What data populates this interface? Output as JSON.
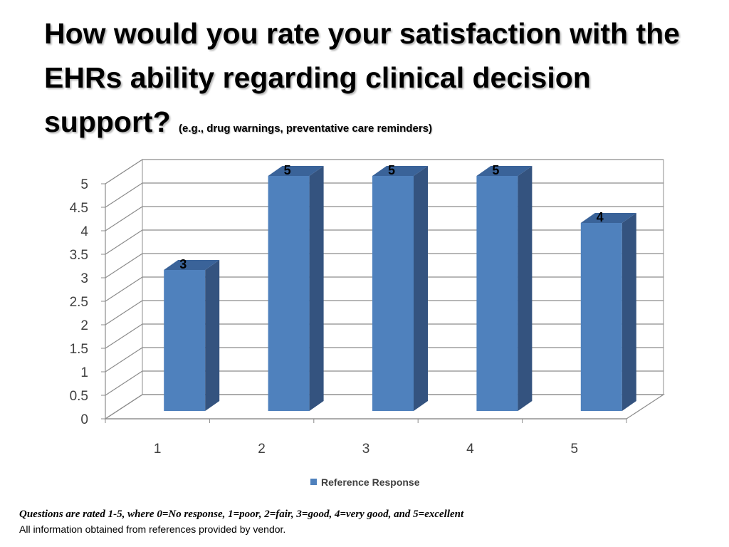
{
  "title": {
    "main": "How would you rate your satisfaction with the EHRs ability regarding clinical decision support?",
    "sub": "(e.g., drug warnings, preventative care reminders)"
  },
  "chart_data": {
    "type": "bar",
    "style": "3d-clustered-column",
    "categories": [
      "1",
      "2",
      "3",
      "4",
      "5"
    ],
    "series": [
      {
        "name": "Reference Response",
        "values": [
          3,
          5,
          5,
          5,
          4
        ],
        "color": "#4F81BD"
      }
    ],
    "data_labels": [
      "3",
      "5",
      "5",
      "5",
      "4"
    ],
    "ylim": [
      0,
      5
    ],
    "yticks": [
      0,
      0.5,
      1,
      1.5,
      2,
      2.5,
      3,
      3.5,
      4,
      4.5,
      5
    ],
    "ytick_labels": [
      "0",
      "0.5",
      "1",
      "1.5",
      "2",
      "2.5",
      "3",
      "3.5",
      "4",
      "4.5",
      "5"
    ],
    "grid": true,
    "legend_position": "bottom",
    "xlabel": "",
    "ylabel": ""
  },
  "footnote": "Questions are rated 1-5, where 0=No response, 1=poor, 2=fair, 3=good, 4=very good, and 5=excellent",
  "source_note": "All information obtained from references provided by vendor.",
  "colors": {
    "bar_front": "#4F81BD",
    "bar_side": "#34537F",
    "bar_top": "#3A6399",
    "gridline": "#8C8C8C"
  }
}
